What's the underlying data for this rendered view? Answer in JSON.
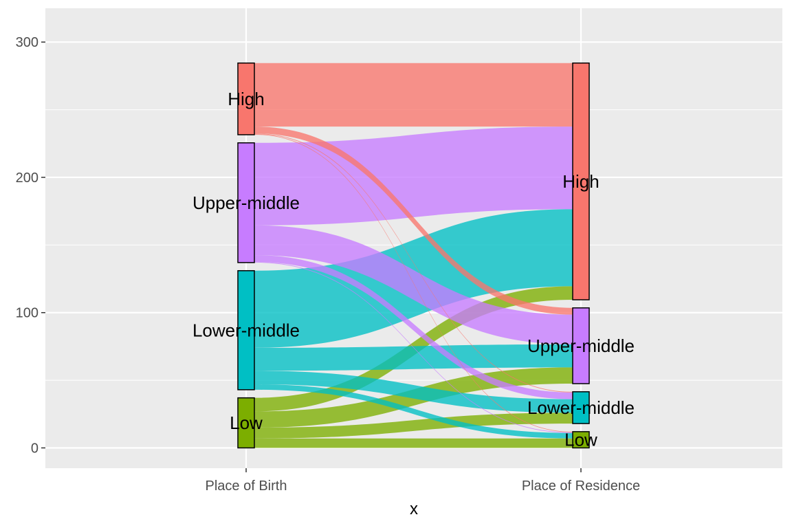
{
  "chart_data": {
    "type": "alluvial",
    "title": "",
    "xlabel": "x",
    "ylabel": "",
    "ylim": [
      -15,
      325
    ],
    "yticks": [
      0,
      100,
      200,
      300
    ],
    "grid": true,
    "axes": [
      "Place of Birth",
      "Place of Residence"
    ],
    "strata": [
      "High",
      "Upper-middle",
      "Lower-middle",
      "Low"
    ],
    "colors": {
      "High": "#F8766D",
      "Upper-middle": "#C77CFF",
      "Lower-middle": "#00BFC4",
      "Low": "#7CAE00"
    },
    "flows": [
      {
        "from": "High",
        "to": "High",
        "value": 47
      },
      {
        "from": "High",
        "to": "Upper-middle",
        "value": 5
      },
      {
        "from": "High",
        "to": "Lower-middle",
        "value": 0.5
      },
      {
        "from": "High",
        "to": "Low",
        "value": 0.5
      },
      {
        "from": "Upper-middle",
        "to": "High",
        "value": 61
      },
      {
        "from": "Upper-middle",
        "to": "Upper-middle",
        "value": 22
      },
      {
        "from": "Upper-middle",
        "to": "Lower-middle",
        "value": 5
      },
      {
        "from": "Upper-middle",
        "to": "Low",
        "value": 0.5
      },
      {
        "from": "Lower-middle",
        "to": "High",
        "value": 57
      },
      {
        "from": "Lower-middle",
        "to": "Upper-middle",
        "value": 17
      },
      {
        "from": "Lower-middle",
        "to": "Lower-middle",
        "value": 10
      },
      {
        "from": "Lower-middle",
        "to": "Low",
        "value": 4
      },
      {
        "from": "Low",
        "to": "High",
        "value": 10
      },
      {
        "from": "Low",
        "to": "Upper-middle",
        "value": 12
      },
      {
        "from": "Low",
        "to": "Lower-middle",
        "value": 8
      },
      {
        "from": "Low",
        "to": "Low",
        "value": 7
      }
    ]
  }
}
